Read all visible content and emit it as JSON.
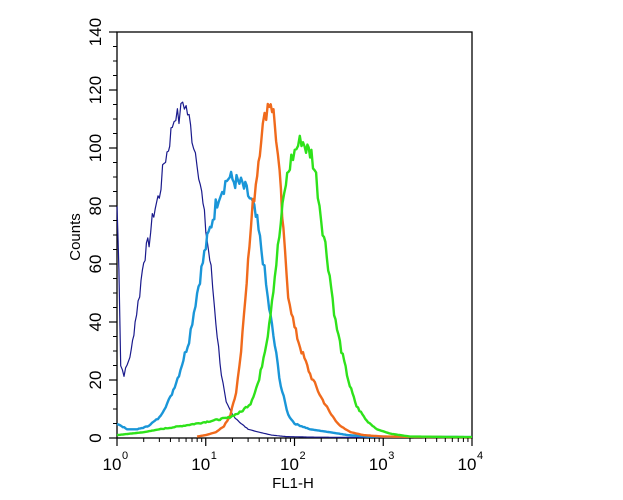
{
  "chart_data": {
    "type": "line",
    "xlabel": "FL1-H",
    "ylabel": "Counts",
    "xscale": "log",
    "xlim": [
      1,
      10000
    ],
    "ylim": [
      0,
      140
    ],
    "grid": false,
    "legend": "none",
    "x_tick_labels": [
      {
        "base": "10",
        "exp": "0"
      },
      {
        "base": "10",
        "exp": "1"
      },
      {
        "base": "10",
        "exp": "2"
      },
      {
        "base": "10",
        "exp": "3"
      },
      {
        "base": "10",
        "exp": "4"
      }
    ],
    "y_ticks": [
      0,
      20,
      40,
      60,
      80,
      100,
      120,
      140
    ],
    "series": [
      {
        "color": "#1a1a8c",
        "width": 1.2,
        "points": [
          [
            1.0,
            80
          ],
          [
            1.05,
            60
          ],
          [
            1.1,
            25
          ],
          [
            1.2,
            22
          ],
          [
            1.3,
            25
          ],
          [
            1.45,
            30
          ],
          [
            1.6,
            40
          ],
          [
            1.8,
            50
          ],
          [
            2.0,
            62
          ],
          [
            2.3,
            68
          ],
          [
            2.6,
            78
          ],
          [
            3.0,
            84
          ],
          [
            3.4,
            95
          ],
          [
            3.8,
            100
          ],
          [
            4.2,
            108
          ],
          [
            4.6,
            112
          ],
          [
            5.0,
            110
          ],
          [
            5.5,
            116
          ],
          [
            6.0,
            114
          ],
          [
            6.5,
            110
          ],
          [
            7.0,
            104
          ],
          [
            8.0,
            96
          ],
          [
            9.0,
            84
          ],
          [
            10.0,
            72
          ],
          [
            11.5,
            58
          ],
          [
            13.0,
            40
          ],
          [
            15.0,
            22
          ],
          [
            17.0,
            12
          ],
          [
            20.0,
            8
          ],
          [
            25.0,
            5
          ],
          [
            30.0,
            3
          ],
          [
            40.0,
            2
          ],
          [
            55.0,
            1
          ],
          [
            80.0,
            0.5
          ],
          [
            150.0,
            0.3
          ],
          [
            500.0,
            0.2
          ],
          [
            10000.0,
            0.2
          ]
        ]
      },
      {
        "color": "#1a96d8",
        "width": 2.4,
        "points": [
          [
            1.0,
            5
          ],
          [
            1.3,
            3
          ],
          [
            1.7,
            3
          ],
          [
            2.2,
            4
          ],
          [
            3.0,
            7
          ],
          [
            4.0,
            14
          ],
          [
            5.0,
            22
          ],
          [
            6.5,
            34
          ],
          [
            8.0,
            50
          ],
          [
            10.0,
            66
          ],
          [
            12.0,
            76
          ],
          [
            14.0,
            84
          ],
          [
            16.0,
            87
          ],
          [
            18.0,
            90
          ],
          [
            20.0,
            89
          ],
          [
            23.0,
            88
          ],
          [
            26.0,
            87
          ],
          [
            30.0,
            84
          ],
          [
            34.0,
            80
          ],
          [
            38.0,
            74
          ],
          [
            44.0,
            62
          ],
          [
            50.0,
            48
          ],
          [
            60.0,
            32
          ],
          [
            70.0,
            18
          ],
          [
            85.0,
            8
          ],
          [
            100.0,
            5
          ],
          [
            150.0,
            3
          ],
          [
            250.0,
            2
          ],
          [
            400.0,
            1
          ],
          [
            700.0,
            0.5
          ],
          [
            10000.0,
            0.3
          ]
        ]
      },
      {
        "color": "#f06a1c",
        "width": 2.4,
        "points": [
          [
            8.0,
            0.5
          ],
          [
            10.0,
            1
          ],
          [
            13.0,
            2
          ],
          [
            16.0,
            4
          ],
          [
            19.0,
            8
          ],
          [
            22.0,
            16
          ],
          [
            25.0,
            30
          ],
          [
            28.0,
            50
          ],
          [
            31.0,
            66
          ],
          [
            34.0,
            80
          ],
          [
            38.0,
            92
          ],
          [
            42.0,
            104
          ],
          [
            46.0,
            110
          ],
          [
            50.0,
            115
          ],
          [
            54.0,
            116
          ],
          [
            58.0,
            112
          ],
          [
            62.0,
            104
          ],
          [
            68.0,
            90
          ],
          [
            75.0,
            70
          ],
          [
            85.0,
            50
          ],
          [
            100.0,
            38
          ],
          [
            120.0,
            30
          ],
          [
            150.0,
            22
          ],
          [
            200.0,
            14
          ],
          [
            260.0,
            8
          ],
          [
            330.0,
            4
          ],
          [
            430.0,
            2
          ],
          [
            600.0,
            1
          ],
          [
            1000.0,
            0.5
          ],
          [
            10000.0,
            0.2
          ]
        ]
      },
      {
        "color": "#2ee21a",
        "width": 2.4,
        "points": [
          [
            1.0,
            1
          ],
          [
            2.0,
            2
          ],
          [
            3.0,
            3
          ],
          [
            5.0,
            4
          ],
          [
            8.0,
            5
          ],
          [
            12.0,
            6
          ],
          [
            18.0,
            7
          ],
          [
            25.0,
            9
          ],
          [
            32.0,
            12
          ],
          [
            40.0,
            20
          ],
          [
            50.0,
            36
          ],
          [
            60.0,
            56
          ],
          [
            70.0,
            74
          ],
          [
            80.0,
            88
          ],
          [
            92.0,
            96
          ],
          [
            105.0,
            100
          ],
          [
            120.0,
            103
          ],
          [
            135.0,
            100
          ],
          [
            155.0,
            98
          ],
          [
            175.0,
            90
          ],
          [
            200.0,
            76
          ],
          [
            240.0,
            60
          ],
          [
            290.0,
            40
          ],
          [
            350.0,
            28
          ],
          [
            420.0,
            18
          ],
          [
            500.0,
            11
          ],
          [
            650.0,
            6
          ],
          [
            850.0,
            3
          ],
          [
            1200.0,
            1.5
          ],
          [
            2000.0,
            0.5
          ],
          [
            10000.0,
            0.3
          ]
        ]
      }
    ]
  }
}
